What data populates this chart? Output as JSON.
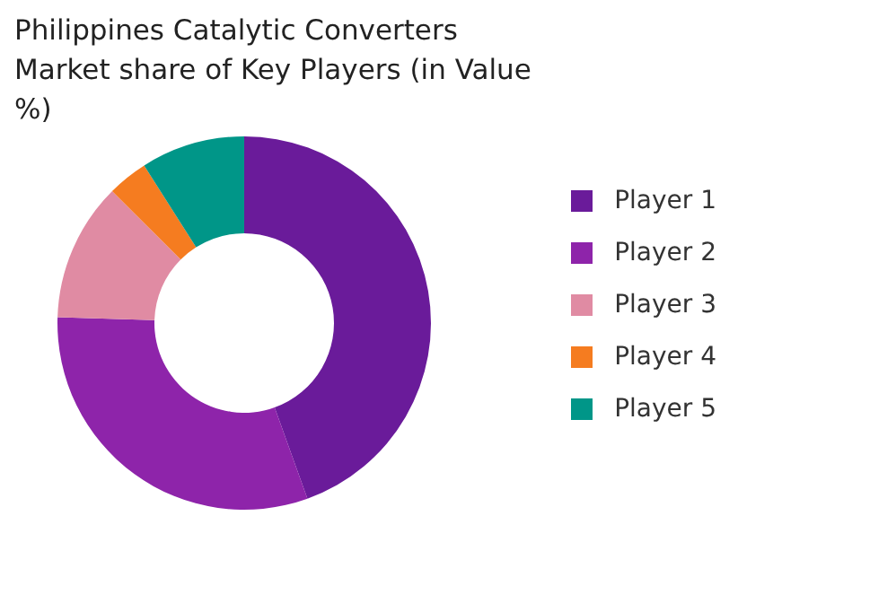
{
  "chart_data": {
    "type": "donut",
    "title": "Philippines Catalytic Converters Market share of Key Players (in Value %)",
    "categories": [
      "Player 1",
      "Player 2",
      "Player 3",
      "Player 4",
      "Player 5"
    ],
    "values": [
      44.5,
      31,
      12,
      3.5,
      9
    ],
    "colors": [
      "#6a1b9a",
      "#8e24aa",
      "#e08ba3",
      "#f57c20",
      "#009688"
    ],
    "legend": "right"
  }
}
